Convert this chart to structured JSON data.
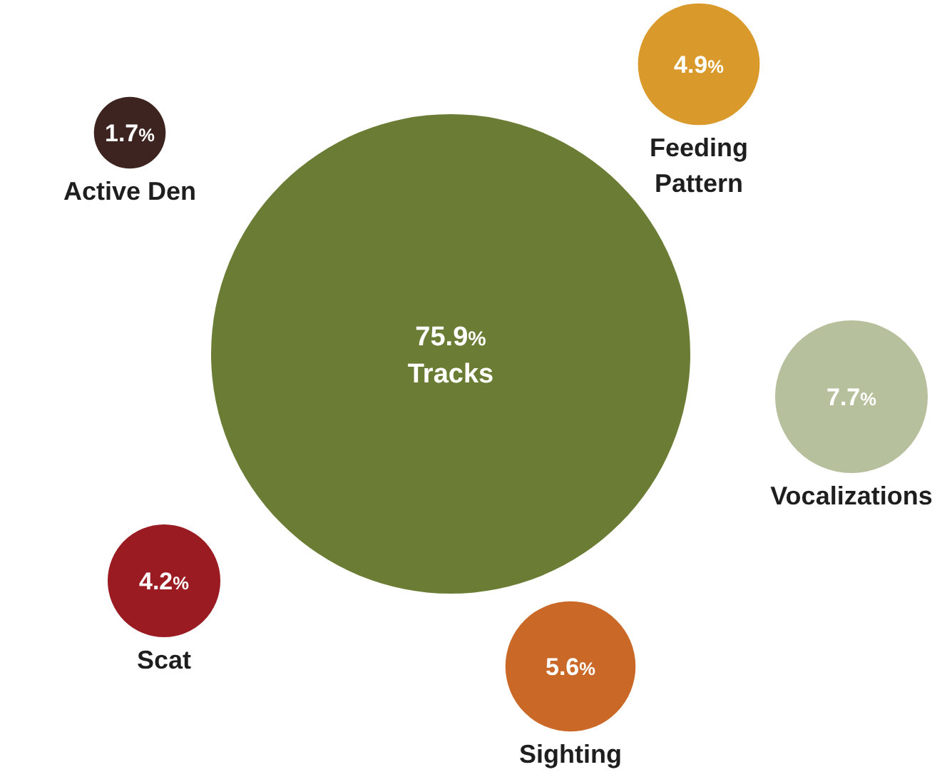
{
  "chart_data": {
    "type": "other",
    "categories": [
      "Tracks",
      "Feeding Pattern",
      "Active Den",
      "Vocalizations",
      "Scat",
      "Sighting"
    ],
    "values": [
      75.9,
      4.9,
      1.7,
      7.7,
      4.2,
      5.6
    ],
    "value_labels": [
      "75.9%",
      "4.9%",
      "1.7%",
      "7.7%",
      "4.2%",
      "5.6%"
    ],
    "colors": [
      "#6b7d35",
      "#d99a2b",
      "#3d2420",
      "#b7c09c",
      "#9a1c22",
      "#c96827"
    ]
  }
}
